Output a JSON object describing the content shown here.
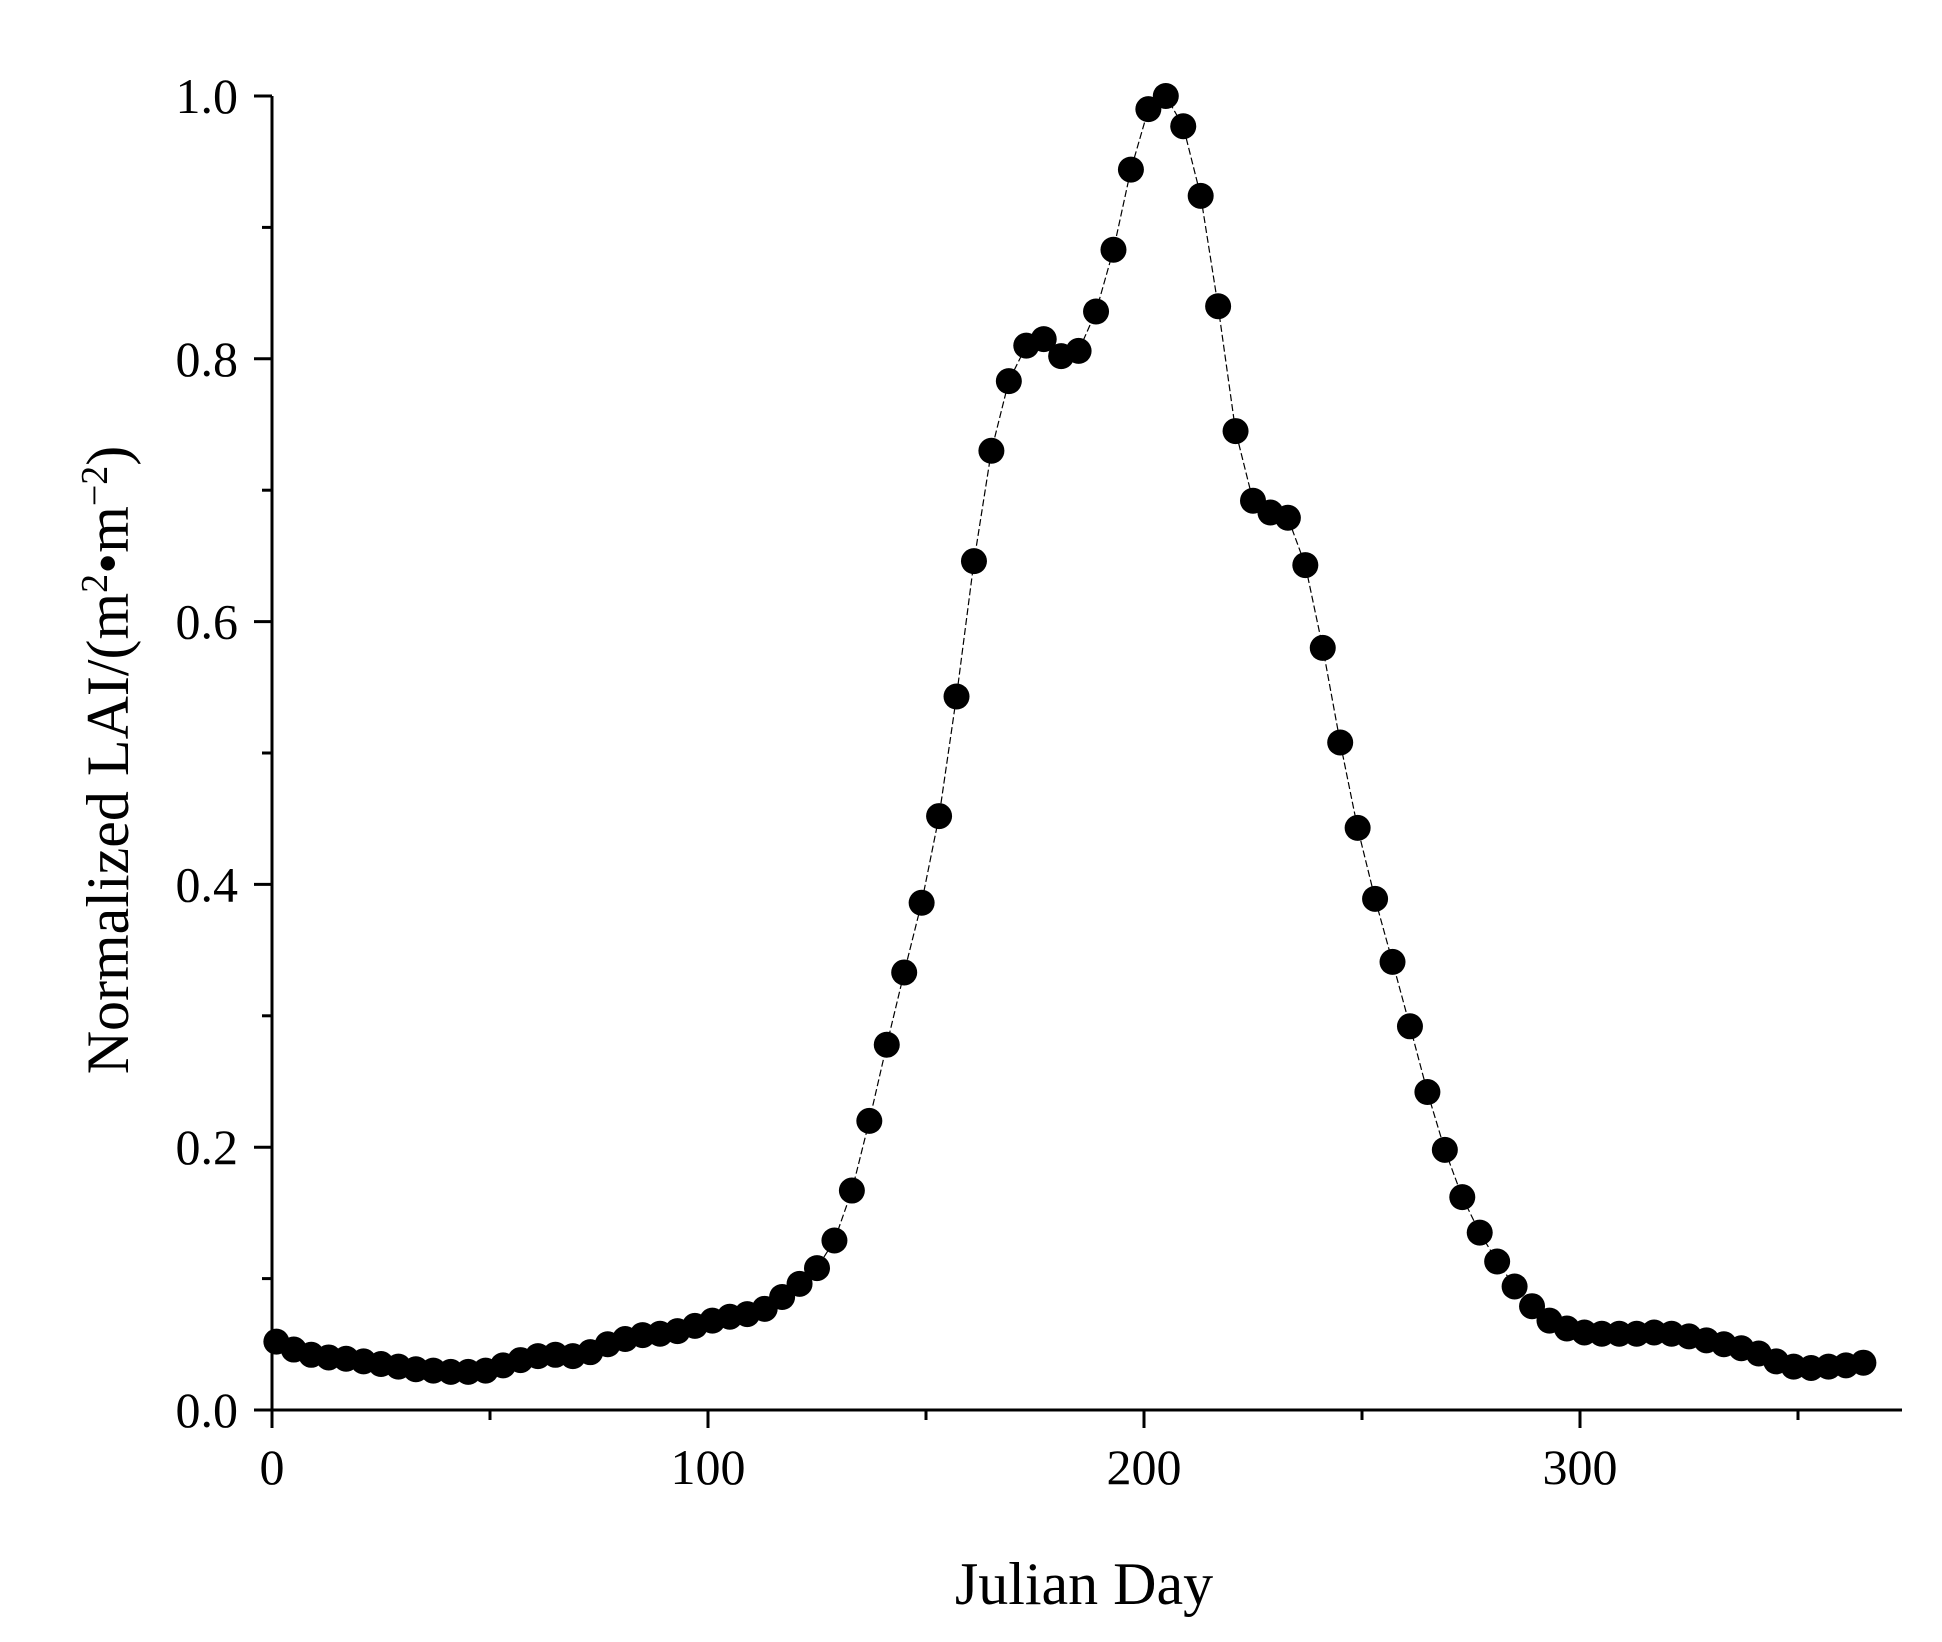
{
  "chart_data": {
    "type": "scatter",
    "xlabel": "Julian Day",
    "ylabel": {
      "text": "Normalized LAI/(m",
      "sup1": "2",
      "mid": "•m",
      "sup2": "−2",
      "end": ")"
    },
    "xlim": [
      0,
      375
    ],
    "ylim": [
      0,
      1.0
    ],
    "xticks": [
      0,
      100,
      200,
      300
    ],
    "xticks_minor": [
      50,
      150,
      250,
      350
    ],
    "yticks": [
      0.0,
      0.2,
      0.4,
      0.6,
      0.8,
      1.0
    ],
    "yticks_minor": [
      0.1,
      0.3,
      0.5,
      0.7,
      0.9
    ],
    "ytick_labels": [
      "0.0",
      "0.2",
      "0.4",
      "0.6",
      "0.8",
      "1.0"
    ],
    "xtick_labels": [
      "0",
      "100",
      "200",
      "300"
    ],
    "grid": false,
    "colors": {
      "marker": "#000000",
      "line": "#000000"
    },
    "series": [
      {
        "x": [
          1,
          5,
          9,
          13,
          17,
          21,
          25,
          29,
          33,
          37,
          41,
          45,
          49,
          53,
          57,
          61,
          65,
          69,
          73,
          77,
          81,
          85,
          89,
          93,
          97,
          101,
          105,
          109,
          113,
          117,
          121,
          125,
          129,
          133,
          137,
          141,
          145,
          149,
          153,
          157,
          161,
          165,
          169,
          173,
          177,
          181,
          185,
          189,
          193,
          197,
          201,
          205,
          209,
          213,
          217,
          221,
          225,
          229,
          233,
          237,
          241,
          245,
          249,
          253,
          257,
          261,
          265,
          269,
          273,
          277,
          281,
          285,
          289,
          293,
          297,
          301,
          305,
          309,
          313,
          317,
          321,
          325,
          329,
          333,
          337,
          341,
          345,
          349,
          353,
          357,
          361,
          365
        ],
        "values": [
          0.052,
          0.046,
          0.042,
          0.04,
          0.039,
          0.037,
          0.035,
          0.033,
          0.031,
          0.03,
          0.029,
          0.029,
          0.03,
          0.034,
          0.038,
          0.041,
          0.042,
          0.041,
          0.044,
          0.05,
          0.054,
          0.057,
          0.058,
          0.06,
          0.064,
          0.068,
          0.071,
          0.073,
          0.077,
          0.086,
          0.096,
          0.108,
          0.129,
          0.167,
          0.22,
          0.278,
          0.333,
          0.386,
          0.452,
          0.543,
          0.646,
          0.73,
          0.783,
          0.81,
          0.815,
          0.802,
          0.806,
          0.836,
          0.883,
          0.944,
          0.99,
          1.0,
          0.977,
          0.924,
          0.84,
          0.745,
          0.692,
          0.683,
          0.679,
          0.643,
          0.58,
          0.508,
          0.443,
          0.389,
          0.341,
          0.292,
          0.242,
          0.198,
          0.162,
          0.135,
          0.113,
          0.094,
          0.079,
          0.068,
          0.062,
          0.059,
          0.058,
          0.058,
          0.058,
          0.059,
          0.058,
          0.056,
          0.053,
          0.05,
          0.047,
          0.043,
          0.037,
          0.033,
          0.032,
          0.033,
          0.034,
          0.036
        ]
      }
    ]
  }
}
